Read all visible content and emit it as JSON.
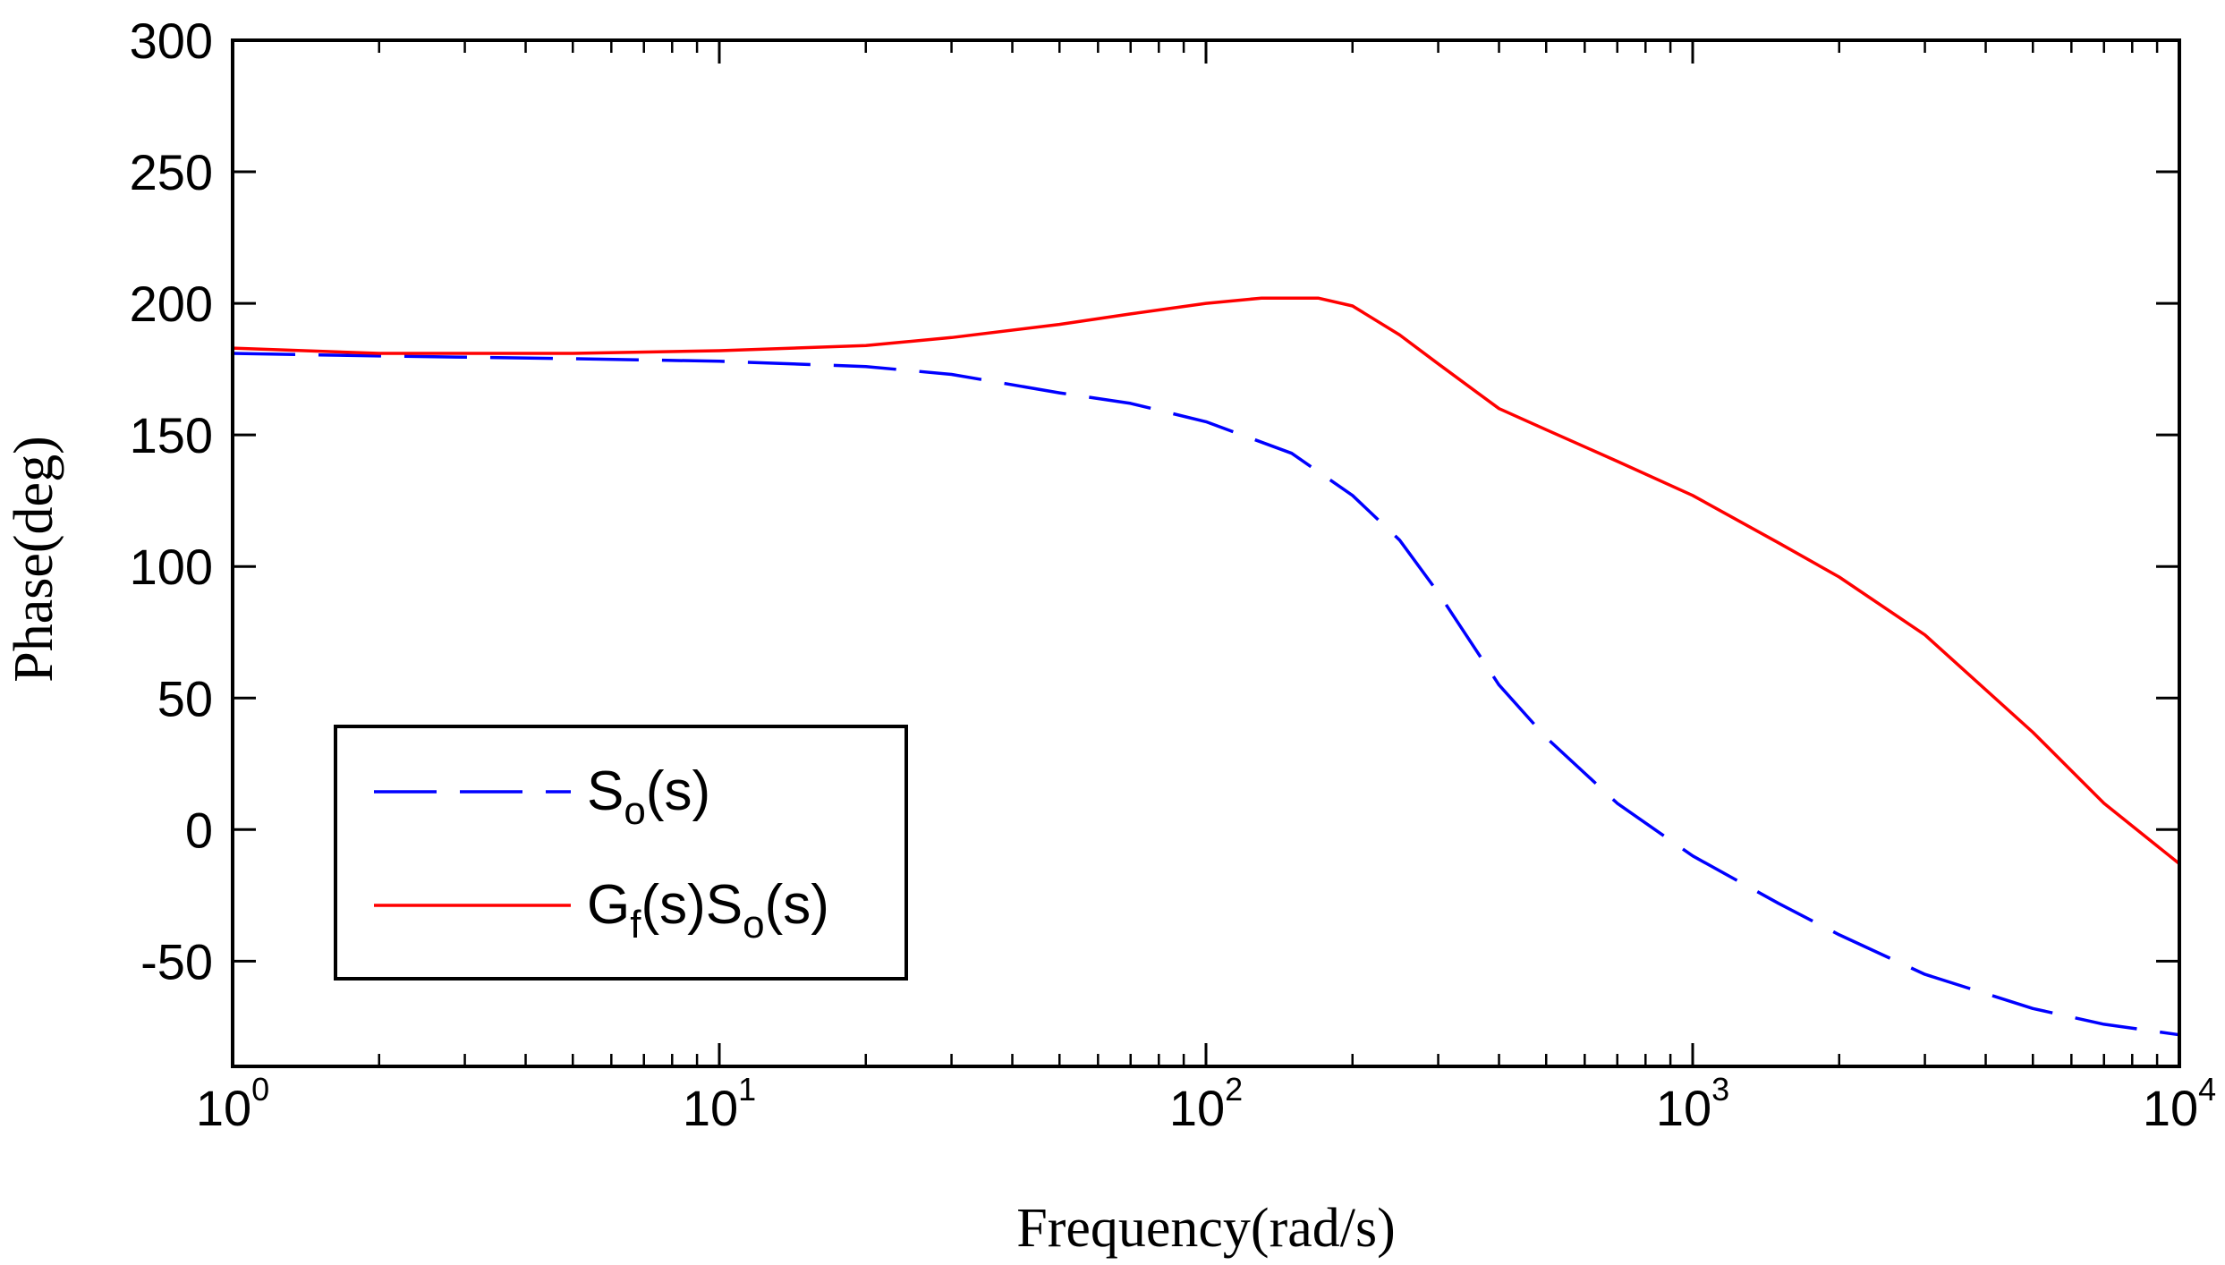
{
  "chart_data": {
    "type": "line",
    "title": "",
    "xlabel": "Frequency(rad/s)",
    "ylabel": "Phase(deg)",
    "xscale": "log",
    "xlim": [
      1,
      10000
    ],
    "ylim": [
      -90,
      300
    ],
    "xticks": [
      {
        "value": 1,
        "base": "10",
        "exp": "0"
      },
      {
        "value": 10,
        "base": "10",
        "exp": "1"
      },
      {
        "value": 100,
        "base": "10",
        "exp": "2"
      },
      {
        "value": 1000,
        "base": "10",
        "exp": "3"
      },
      {
        "value": 10000,
        "base": "10",
        "exp": "4"
      }
    ],
    "yticks": [
      {
        "value": 300,
        "label": "300"
      },
      {
        "value": 250,
        "label": "250"
      },
      {
        "value": 200,
        "label": "200"
      },
      {
        "value": 150,
        "label": "150"
      },
      {
        "value": 100,
        "label": "100"
      },
      {
        "value": 50,
        "label": "50"
      },
      {
        "value": 0,
        "label": "0"
      },
      {
        "value": -50,
        "label": "-50"
      }
    ],
    "legend_position": "lower-left",
    "series": [
      {
        "name": "So(s)",
        "legend_main": "S",
        "legend_sub": "o",
        "legend_tail": "(s)",
        "color": "#0000ff",
        "style": "dashed",
        "x": [
          1,
          2,
          5,
          10,
          20,
          30,
          50,
          70,
          100,
          150,
          200,
          250,
          300,
          400,
          500,
          700,
          1000,
          1500,
          2000,
          3000,
          5000,
          7000,
          10000
        ],
        "y": [
          181,
          180,
          179,
          178,
          176,
          173,
          166,
          162,
          155,
          143,
          127,
          110,
          90,
          55,
          35,
          10,
          -10,
          -28,
          -40,
          -55,
          -68,
          -74,
          -78
        ]
      },
      {
        "name": "Gf(s)So(s)",
        "legend_parts": [
          {
            "main": "G",
            "sub": "f"
          },
          {
            "main": "(s)S",
            "sub": "o"
          },
          {
            "main": "(s)",
            "sub": ""
          }
        ],
        "color": "#ff0000",
        "style": "solid",
        "x": [
          1,
          2,
          5,
          10,
          20,
          30,
          50,
          70,
          100,
          130,
          170,
          200,
          250,
          300,
          400,
          500,
          700,
          1000,
          1500,
          2000,
          3000,
          5000,
          7000,
          10000
        ],
        "y": [
          183,
          181,
          181,
          182,
          184,
          187,
          192,
          196,
          200,
          202,
          202,
          199,
          188,
          177,
          160,
          152,
          140,
          127,
          109,
          96,
          74,
          37,
          10,
          -13
        ]
      }
    ]
  }
}
